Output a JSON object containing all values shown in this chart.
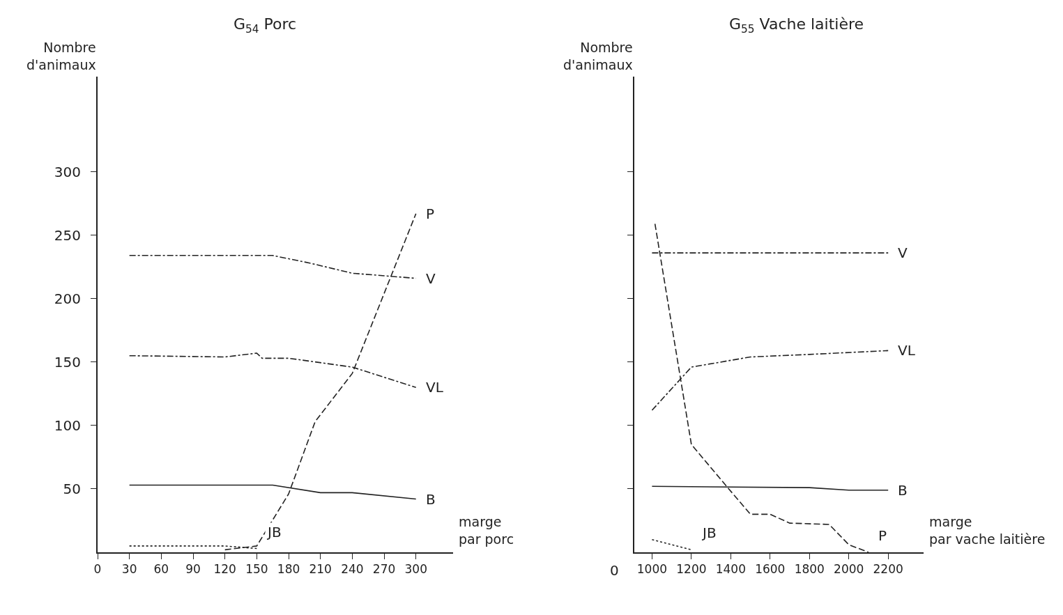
{
  "chart_data": [
    {
      "type": "line",
      "title": "G$_{54}$ Porc",
      "xlabel": "marge par porc",
      "ylabel": "Nombre d'animaux",
      "xlim": [
        0,
        335
      ],
      "ylim": [
        0,
        375
      ],
      "xticks": [
        0,
        30,
        60,
        90,
        120,
        150,
        180,
        210,
        240,
        270,
        300
      ],
      "yticks": [
        50,
        100,
        150,
        200,
        250,
        300
      ],
      "grid": false,
      "legend": false,
      "marker": "none",
      "series": [
        {
          "name": "V",
          "color": "#222222",
          "line_style": "dashdot",
          "x": [
            30,
            165,
            200,
            240,
            300
          ],
          "values": [
            234,
            234,
            228,
            220,
            216
          ]
        },
        {
          "name": "VL",
          "color": "#222222",
          "line_style": "dashdot",
          "x": [
            30,
            120,
            150,
            155,
            180,
            240,
            300
          ],
          "values": [
            155,
            154,
            157,
            153,
            153,
            146,
            130
          ]
        },
        {
          "name": "B",
          "color": "#222222",
          "line_style": "solid",
          "x": [
            30,
            165,
            210,
            240,
            300
          ],
          "values": [
            53,
            53,
            47,
            47,
            42
          ]
        },
        {
          "name": "P",
          "color": "#222222",
          "line_style": "dashed",
          "x": [
            120,
            150,
            180,
            205,
            240,
            300
          ],
          "values": [
            2,
            5,
            46,
            103,
            141,
            267
          ]
        },
        {
          "name": "JB",
          "color": "#222222",
          "line_style": "dotted",
          "x": [
            30,
            120,
            150
          ],
          "values": [
            5,
            5,
            3
          ]
        }
      ]
    },
    {
      "type": "line",
      "title": "G$_{55}$ Vache laitière",
      "xlabel": "marge par vache laitière",
      "ylabel": "Nombre d'animaux",
      "xlim": [
        910,
        2380
      ],
      "ylim": [
        0,
        375
      ],
      "annotations": [
        "0"
      ],
      "xticks": [
        1000,
        1200,
        1400,
        1600,
        1800,
        2000,
        2200
      ],
      "yticks": [
        {
          "value": 50,
          "label": null
        },
        {
          "value": 100,
          "label": null
        },
        {
          "value": 150,
          "label": null
        },
        {
          "value": 200,
          "label": null
        },
        {
          "value": 250,
          "label": null
        },
        {
          "value": 300,
          "label": null
        }
      ],
      "tick_labels": "x",
      "grid": false,
      "legend": false,
      "marker": "none",
      "series": [
        {
          "name": "V",
          "color": "#222222",
          "line_style": "dashdot",
          "x": [
            1000,
            2200
          ],
          "values": [
            236,
            236
          ]
        },
        {
          "name": "VL",
          "color": "#222222",
          "line_style": "dashdot",
          "x": [
            1000,
            1200,
            1500,
            1800,
            2200
          ],
          "values": [
            112,
            146,
            154,
            156,
            159
          ]
        },
        {
          "name": "B",
          "color": "#222222",
          "line_style": "solid",
          "x": [
            1000,
            1800,
            2000,
            2200
          ],
          "values": [
            52,
            51,
            49,
            49
          ]
        },
        {
          "name": "P",
          "color": "#222222",
          "line_style": "dashed",
          "x": [
            1015,
            1200,
            1390,
            1500,
            1600,
            1700,
            1900,
            2000,
            2100
          ],
          "values": [
            259,
            85,
            50,
            30,
            30,
            23,
            22,
            6,
            0
          ]
        },
        {
          "name": "JB",
          "color": "#222222",
          "line_style": "dotted",
          "x": [
            1000,
            1200
          ],
          "values": [
            10,
            2
          ]
        }
      ]
    }
  ]
}
